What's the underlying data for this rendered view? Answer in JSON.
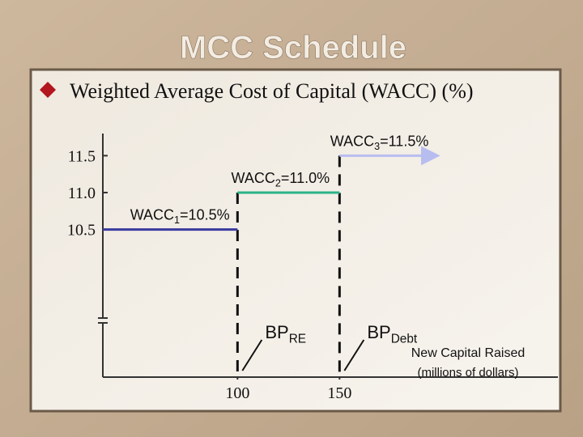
{
  "chart_data": {
    "type": "step",
    "title": "MCC Schedule",
    "subtitle": "Weighted Average Cost of Capital (WACC) (%)",
    "x_label_lines": [
      "New Capital Raised",
      "(millions of dollars)"
    ],
    "xlim": [
      34,
      257
    ],
    "ylim": [
      8.5,
      11.8
    ],
    "xticks": [
      100,
      150
    ],
    "yticks": [
      {
        "value": 10.5,
        "label": "10.5"
      },
      {
        "value": 11.0,
        "label": "11.0"
      },
      {
        "value": 11.5,
        "label": "11.5"
      }
    ],
    "series": [
      {
        "name": "WACC",
        "sub": "1",
        "value_label": "=10.5%",
        "value": 10.5,
        "x": [
          34,
          100
        ],
        "color": "#3a3a9e"
      },
      {
        "name": "WACC",
        "sub": "2",
        "value_label": "=11.0%",
        "value": 11.0,
        "x": [
          100,
          150
        ],
        "color": "#2bb389"
      },
      {
        "name": "WACC",
        "sub": "3",
        "value_label": "=11.5%",
        "value": 11.5,
        "x": [
          150,
          197
        ],
        "color": "#b8bdf0",
        "arrow": true
      }
    ],
    "breakpoints": [
      {
        "name": "BP",
        "sub": "RE",
        "x": 100
      },
      {
        "name": "BP",
        "sub": "Debt",
        "x": 150
      }
    ]
  }
}
